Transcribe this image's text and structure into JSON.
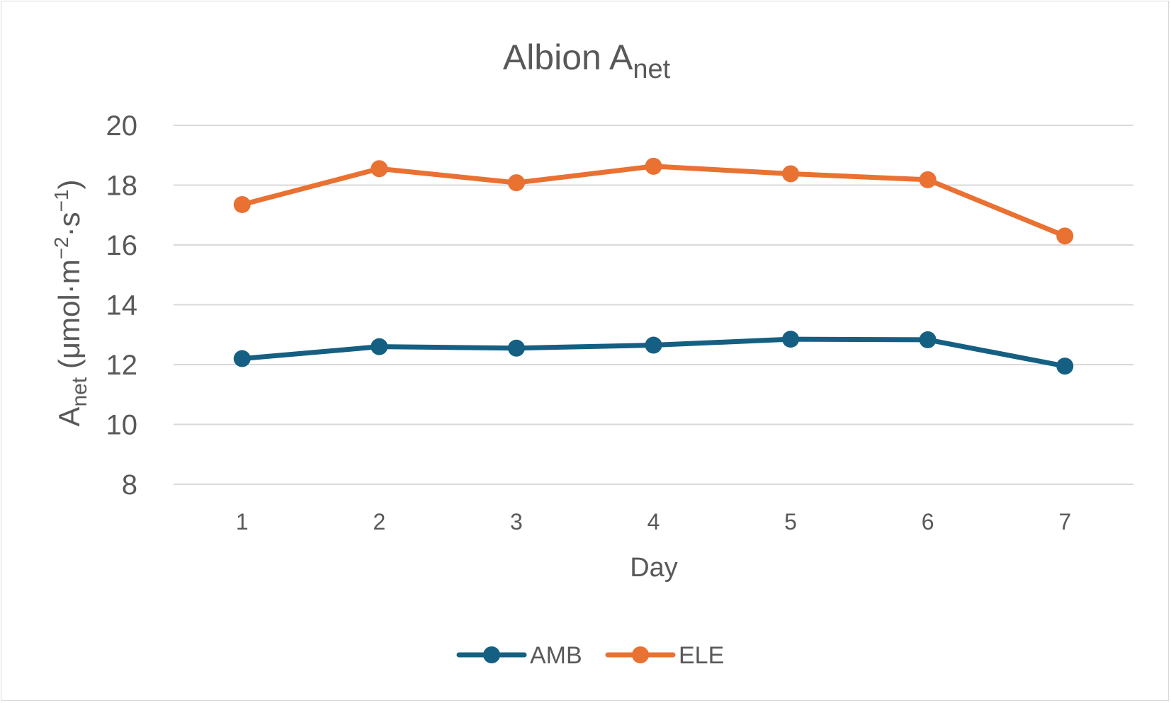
{
  "chart_data": {
    "type": "line",
    "title": {
      "main": "Albion A",
      "sub": "net"
    },
    "xlabel": "Day",
    "ylabel": {
      "main": "A",
      "sub": "net",
      "units_open": " (μmol·m",
      "units_exp1": "−2",
      "units_mid": "·s",
      "units_exp2": "−1",
      "units_close": ")"
    },
    "categories": [
      "1",
      "2",
      "3",
      "4",
      "5",
      "6",
      "7"
    ],
    "ylim": [
      8,
      20
    ],
    "yticks": [
      "8",
      "10",
      "12",
      "14",
      "16",
      "18",
      "20"
    ],
    "grid": true,
    "legend_position": "bottom",
    "series": [
      {
        "name": "AMB",
        "color": "#156082",
        "values": [
          12.2,
          12.6,
          12.55,
          12.65,
          12.85,
          12.83,
          11.95
        ]
      },
      {
        "name": "ELE",
        "color": "#E97132",
        "values": [
          17.35,
          18.55,
          18.08,
          18.63,
          18.38,
          18.18,
          16.3
        ]
      }
    ]
  }
}
